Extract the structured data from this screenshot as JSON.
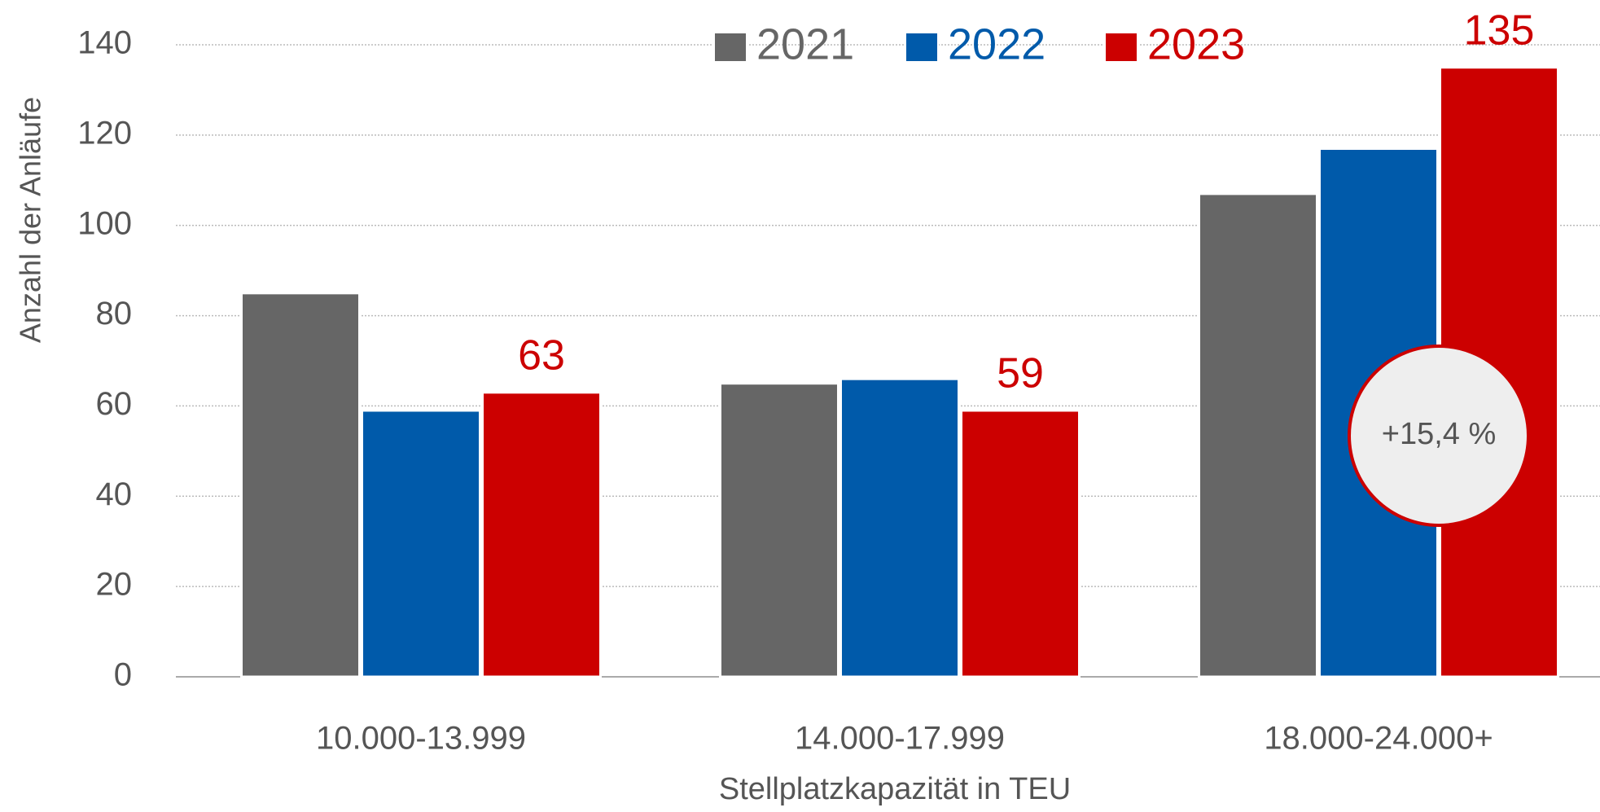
{
  "chart_data": {
    "type": "bar",
    "y_label": "Anzahl der Anläufe",
    "x_label": "Stellplatzkapazität in TEU",
    "categories": [
      "10.000-13.999",
      "14.000-17.999",
      "18.000-24.000+"
    ],
    "series": [
      {
        "name": "2021",
        "color": "#666666",
        "values": [
          85,
          65,
          107
        ]
      },
      {
        "name": "2022",
        "color": "#005aaa",
        "values": [
          59,
          66,
          117
        ]
      },
      {
        "name": "2023",
        "color": "#cc0000",
        "values": [
          63,
          59,
          135
        ],
        "labels": true
      }
    ],
    "ylim": [
      0,
      140
    ],
    "yticks": [
      0,
      20,
      40,
      60,
      80,
      100,
      120,
      140
    ],
    "grid": true,
    "legend": "top",
    "annotation": "+15,4 %"
  }
}
